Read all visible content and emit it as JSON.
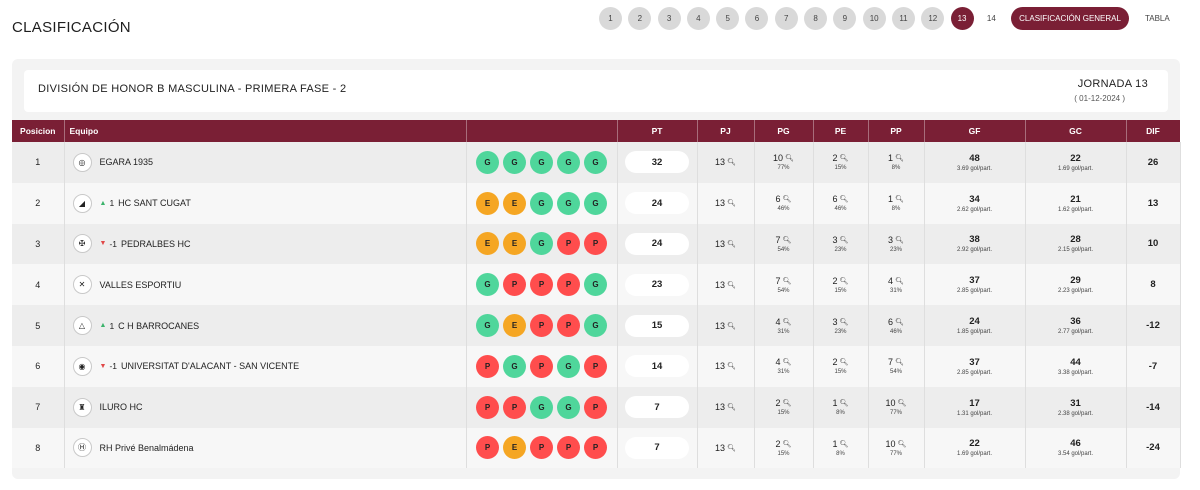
{
  "page_title": "CLASIFICACIÓN",
  "jornadas": [
    "1",
    "2",
    "3",
    "4",
    "5",
    "6",
    "7",
    "8",
    "9",
    "10",
    "11",
    "12",
    "13",
    "14"
  ],
  "active_jornada": "13",
  "buttons": {
    "general": "CLASIFICACIÓN GENERAL",
    "tabla": "TABLA"
  },
  "division": "DIVISIÓN DE HONOR B MASCULINA - PRIMERA FASE - 2",
  "jornada_label": "JORNADA 13",
  "jornada_date": "( 01-12-2024 )",
  "columns": [
    "Posicion",
    "Equipo",
    "",
    "PT",
    "PJ",
    "PG",
    "PE",
    "PP",
    "GF",
    "GC",
    "DIF"
  ],
  "colors": {
    "accent": "#7a1f35",
    "win": "#4fd69b",
    "draw": "#f5a623",
    "loss": "#ff4d4d"
  },
  "rows": [
    {
      "pos": "1",
      "trend": "",
      "trend_dir": "none",
      "team": "EGARA 1935",
      "crest_icon": "egara-crest-icon",
      "results": [
        "G",
        "G",
        "G",
        "G",
        "G"
      ],
      "pt": "32",
      "pj": "13",
      "pg": "10",
      "pg_pct": "77%",
      "pe": "2",
      "pe_pct": "15%",
      "pp": "1",
      "pp_pct": "8%",
      "gf": "48",
      "gf_avg": "3.69 gol/part.",
      "gc": "22",
      "gc_avg": "1.69 gol/part.",
      "dif": "26"
    },
    {
      "pos": "2",
      "trend": "1",
      "trend_dir": "up",
      "team": "HC SANT CUGAT",
      "crest_icon": "santcugat-crest-icon",
      "results": [
        "E",
        "E",
        "G",
        "G",
        "G"
      ],
      "pt": "24",
      "pj": "13",
      "pg": "6",
      "pg_pct": "46%",
      "pe": "6",
      "pe_pct": "46%",
      "pp": "1",
      "pp_pct": "8%",
      "gf": "34",
      "gf_avg": "2.62 gol/part.",
      "gc": "21",
      "gc_avg": "1.62 gol/part.",
      "dif": "13"
    },
    {
      "pos": "3",
      "trend": "-1",
      "trend_dir": "down",
      "team": "PEDRALBES HC",
      "crest_icon": "pedralbes-crest-icon",
      "results": [
        "E",
        "E",
        "G",
        "P",
        "P"
      ],
      "pt": "24",
      "pj": "13",
      "pg": "7",
      "pg_pct": "54%",
      "pe": "3",
      "pe_pct": "23%",
      "pp": "3",
      "pp_pct": "23%",
      "gf": "38",
      "gf_avg": "2.92 gol/part.",
      "gc": "28",
      "gc_avg": "2.15 gol/part.",
      "dif": "10"
    },
    {
      "pos": "4",
      "trend": "",
      "trend_dir": "none",
      "team": "VALLES ESPORTIU",
      "crest_icon": "valles-crest-icon",
      "results": [
        "G",
        "P",
        "P",
        "P",
        "G"
      ],
      "pt": "23",
      "pj": "13",
      "pg": "7",
      "pg_pct": "54%",
      "pe": "2",
      "pe_pct": "15%",
      "pp": "4",
      "pp_pct": "31%",
      "gf": "37",
      "gf_avg": "2.85 gol/part.",
      "gc": "29",
      "gc_avg": "2.23 gol/part.",
      "dif": "8"
    },
    {
      "pos": "5",
      "trend": "1",
      "trend_dir": "up",
      "team": "C H BARROCANES",
      "crest_icon": "barrocanes-crest-icon",
      "results": [
        "G",
        "E",
        "P",
        "P",
        "G"
      ],
      "pt": "15",
      "pj": "13",
      "pg": "4",
      "pg_pct": "31%",
      "pe": "3",
      "pe_pct": "23%",
      "pp": "6",
      "pp_pct": "46%",
      "gf": "24",
      "gf_avg": "1.85 gol/part.",
      "gc": "36",
      "gc_avg": "2.77 gol/part.",
      "dif": "-12"
    },
    {
      "pos": "6",
      "trend": "-1",
      "trend_dir": "down",
      "team": "UNIVERSITAT D'ALACANT - SAN VICENTE",
      "crest_icon": "alacant-crest-icon",
      "results": [
        "P",
        "G",
        "P",
        "G",
        "P"
      ],
      "pt": "14",
      "pj": "13",
      "pg": "4",
      "pg_pct": "31%",
      "pe": "2",
      "pe_pct": "15%",
      "pp": "7",
      "pp_pct": "54%",
      "gf": "37",
      "gf_avg": "2.85 gol/part.",
      "gc": "44",
      "gc_avg": "3.38 gol/part.",
      "dif": "-7"
    },
    {
      "pos": "7",
      "trend": "",
      "trend_dir": "none",
      "team": "ILURO HC",
      "crest_icon": "iluro-crest-icon",
      "results": [
        "P",
        "P",
        "G",
        "G",
        "P"
      ],
      "pt": "7",
      "pj": "13",
      "pg": "2",
      "pg_pct": "15%",
      "pe": "1",
      "pe_pct": "8%",
      "pp": "10",
      "pp_pct": "77%",
      "gf": "17",
      "gf_avg": "1.31 gol/part.",
      "gc": "31",
      "gc_avg": "2.38 gol/part.",
      "dif": "-14"
    },
    {
      "pos": "8",
      "trend": "",
      "trend_dir": "none",
      "team": "RH Privé Benalmádena",
      "crest_icon": "benalmadena-crest-icon",
      "results": [
        "P",
        "E",
        "P",
        "P",
        "P"
      ],
      "pt": "7",
      "pj": "13",
      "pg": "2",
      "pg_pct": "15%",
      "pe": "1",
      "pe_pct": "8%",
      "pp": "10",
      "pp_pct": "77%",
      "gf": "22",
      "gf_avg": "1.69 gol/part.",
      "gc": "46",
      "gc_avg": "3.54 gol/part.",
      "dif": "-24"
    }
  ]
}
